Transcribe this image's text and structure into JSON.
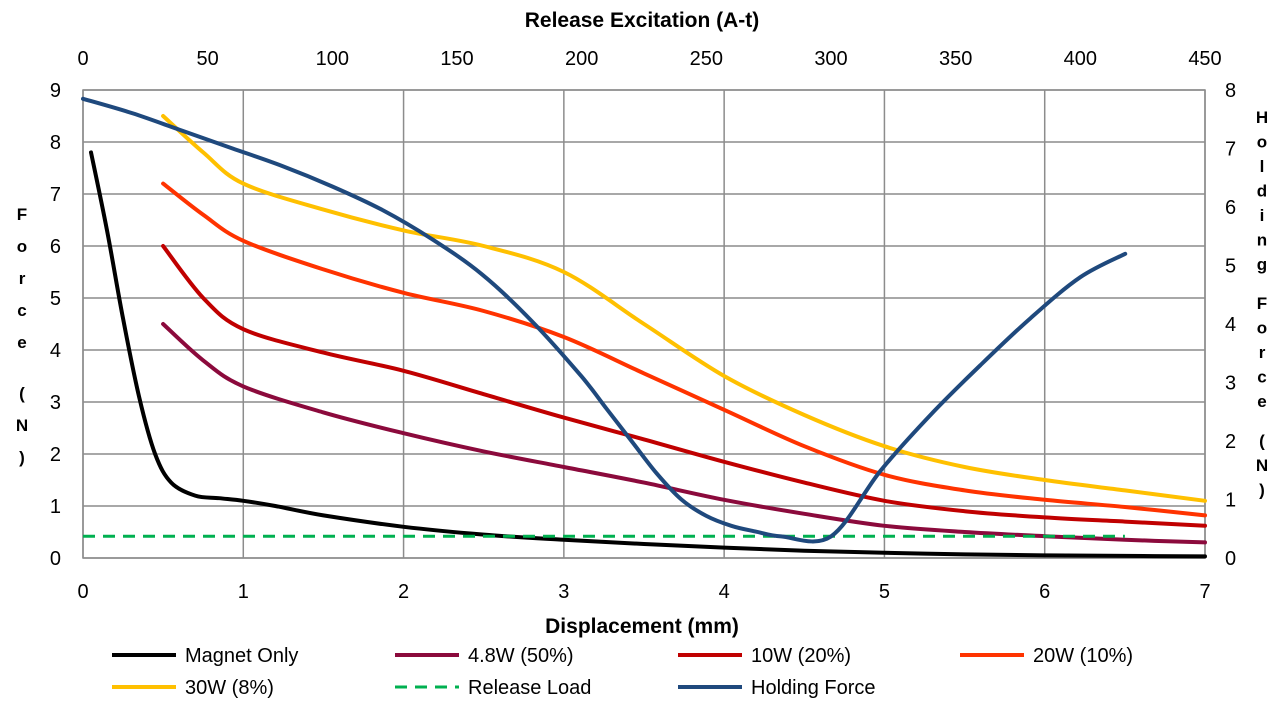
{
  "chart_data": {
    "type": "line",
    "xlabel": "Displacement (mm)",
    "x2label": "Release Excitation (A-t)",
    "ylabel": "Force (N)",
    "y2label": "Holding Force (N)",
    "xlim": [
      0,
      7
    ],
    "x2lim": [
      0,
      450
    ],
    "ylim": [
      0,
      9
    ],
    "y2lim": [
      0,
      8
    ],
    "x_ticks": [
      "0",
      "1",
      "2",
      "3",
      "4",
      "5",
      "6",
      "7"
    ],
    "x2_ticks": [
      "0",
      "50",
      "100",
      "150",
      "200",
      "250",
      "300",
      "350",
      "400",
      "450"
    ],
    "y_ticks": [
      "0",
      "1",
      "2",
      "3",
      "4",
      "5",
      "6",
      "7",
      "8",
      "9"
    ],
    "y2_ticks": [
      "0",
      "1",
      "2",
      "3",
      "4",
      "5",
      "6",
      "7",
      "8"
    ],
    "grid": true,
    "legend_position": "bottom",
    "series": [
      {
        "name": "Magnet Only",
        "color": "#000000",
        "dash": "solid",
        "axis": "primary",
        "x": [
          0.05,
          0.15,
          0.25,
          0.35,
          0.45,
          0.55,
          0.7,
          0.85,
          1.0,
          1.2,
          1.5,
          2.0,
          2.5,
          3.0,
          3.5,
          4.0,
          4.5,
          5.0,
          5.5,
          6.0,
          6.5,
          7.0
        ],
        "y": [
          7.8,
          6.3,
          4.6,
          3.1,
          2.0,
          1.45,
          1.2,
          1.15,
          1.1,
          1.0,
          0.82,
          0.6,
          0.45,
          0.35,
          0.27,
          0.2,
          0.14,
          0.1,
          0.07,
          0.05,
          0.04,
          0.03
        ]
      },
      {
        "name": "4.8W (50%)",
        "color": "#8B0A3C",
        "dash": "solid",
        "axis": "primary",
        "x": [
          0.5,
          0.75,
          1.0,
          1.5,
          2.0,
          2.5,
          3.0,
          3.5,
          4.0,
          4.5,
          5.0,
          5.5,
          6.0,
          6.5,
          7.0
        ],
        "y": [
          4.5,
          3.8,
          3.3,
          2.8,
          2.4,
          2.05,
          1.75,
          1.45,
          1.12,
          0.85,
          0.62,
          0.5,
          0.42,
          0.35,
          0.3
        ]
      },
      {
        "name": "10W (20%)",
        "color": "#C00000",
        "dash": "solid",
        "axis": "primary",
        "x": [
          0.5,
          0.75,
          1.0,
          1.5,
          2.0,
          2.5,
          3.0,
          3.5,
          4.0,
          4.5,
          5.0,
          5.5,
          6.0,
          6.5,
          7.0
        ],
        "y": [
          6.0,
          5.0,
          4.4,
          3.95,
          3.6,
          3.15,
          2.7,
          2.28,
          1.85,
          1.45,
          1.1,
          0.9,
          0.78,
          0.7,
          0.62
        ]
      },
      {
        "name": "20W (10%)",
        "color": "#FF3300",
        "dash": "solid",
        "axis": "primary",
        "x": [
          0.5,
          0.75,
          1.0,
          1.5,
          2.0,
          2.5,
          3.0,
          3.5,
          4.0,
          4.5,
          5.0,
          5.5,
          6.0,
          6.5,
          7.0
        ],
        "y": [
          7.2,
          6.6,
          6.1,
          5.55,
          5.1,
          4.75,
          4.25,
          3.55,
          2.85,
          2.15,
          1.6,
          1.3,
          1.12,
          0.98,
          0.82
        ]
      },
      {
        "name": "30W (8%)",
        "color": "#FFC000",
        "dash": "solid",
        "axis": "primary",
        "x": [
          0.5,
          0.75,
          1.0,
          1.5,
          2.0,
          2.5,
          3.0,
          3.5,
          4.0,
          4.5,
          5.0,
          5.5,
          6.0,
          6.5,
          7.0
        ],
        "y": [
          8.5,
          7.8,
          7.2,
          6.7,
          6.3,
          6.0,
          5.5,
          4.5,
          3.5,
          2.75,
          2.15,
          1.75,
          1.5,
          1.3,
          1.1
        ]
      },
      {
        "name": "Release Load",
        "color": "#00B050",
        "dash": "dashed",
        "axis": "primary",
        "x": [
          0.0,
          6.5
        ],
        "y": [
          0.42,
          0.42
        ]
      },
      {
        "name": "Holding Force",
        "color": "#1F497D",
        "dash": "solid",
        "axis": "secondary",
        "x": [
          0,
          20,
          40,
          60,
          80,
          100,
          120,
          140,
          160,
          180,
          200,
          210,
          220,
          230,
          240,
          250,
          260,
          270,
          280,
          300,
          320,
          340,
          360,
          380,
          400,
          418
        ],
        "y": [
          7.85,
          7.6,
          7.3,
          7.0,
          6.7,
          6.35,
          5.95,
          5.45,
          4.85,
          4.05,
          3.1,
          2.55,
          2.0,
          1.45,
          1.0,
          0.72,
          0.55,
          0.45,
          0.37,
          0.37,
          1.5,
          2.45,
          3.3,
          4.1,
          4.8,
          5.2
        ]
      }
    ]
  }
}
